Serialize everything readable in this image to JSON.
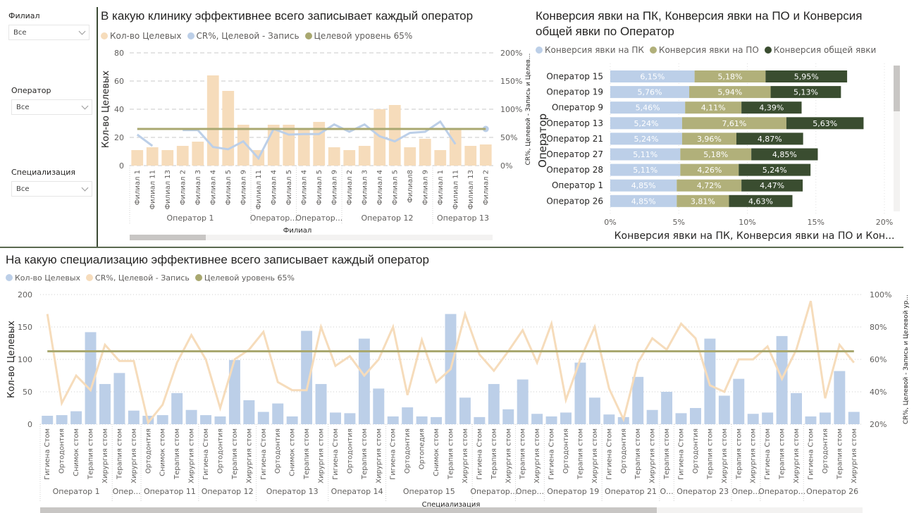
{
  "slicers": [
    {
      "label": "Филиал",
      "value": "Все"
    },
    {
      "label": "Оператор",
      "value": "Все"
    },
    {
      "label": "Специализация",
      "value": "Все"
    }
  ],
  "colors": {
    "peach": "#f6dcbb",
    "lightblue": "#bccfe8",
    "olive": "#b1b07a",
    "dark_green": "#3a4d30",
    "target_line": "#a9a870"
  },
  "chart_data": [
    {
      "type": "bar",
      "id": "clinic-chart",
      "title": "В какую клинику эффективнее всего записывает каждый оператор",
      "legend": [
        "Кол-во Целевых",
        "CR%, Целевой - Запись",
        "Целевой уровень 65%"
      ],
      "xlabel": "Филиал",
      "ylabel": "Кол-во Целевых",
      "y2label": "CR%, Целевой - Запись и Целев...",
      "ylim": [
        0,
        80
      ],
      "yticks": [
        "0",
        "20",
        "40",
        "60",
        "80"
      ],
      "y2lim": [
        0,
        200
      ],
      "y2ticks": [
        "0%",
        "50%",
        "100%",
        "150%",
        "200%"
      ],
      "groups": [
        {
          "name": "Оператор 1",
          "count": 8
        },
        {
          "name": "Оператор...",
          "count": 3
        },
        {
          "name": "Оператор...",
          "count": 3
        },
        {
          "name": "Оператор 12",
          "count": 6
        },
        {
          "name": "Оператор 13",
          "count": 4
        }
      ],
      "categories": [
        "Филиал 1",
        "Филиал 11",
        "Филиал 13",
        "Филиал 2",
        "Филиал 3",
        "Филиал 4",
        "Филиал 5",
        "Филиал 9",
        "Филиал 11",
        "Филиал 4",
        "Филиал 5",
        "Филиал 4",
        "Филиал 5",
        "Филиал 9",
        "Филиал 2",
        "Филиал 3",
        "Филиал 4",
        "Филиал 5",
        "Филиал8",
        "Филиал 9",
        "Филиал 1",
        "Филиал 11",
        "Филиал 13",
        "Филиал 2"
      ],
      "series": [
        {
          "name": "Кол-во Целевых",
          "type": "bar",
          "values": [
            11,
            13,
            11,
            14,
            17,
            64,
            53,
            29,
            11,
            29,
            29,
            26,
            31,
            13,
            11,
            14,
            40,
            43,
            13,
            19,
            11,
            26,
            14,
            15
          ]
        },
        {
          "name": "CR%, Целевой - Запись",
          "type": "line",
          "values": [
            55,
            35,
            null,
            63,
            63,
            33,
            29,
            43,
            13,
            65,
            55,
            56,
            56,
            73,
            60,
            73,
            52,
            43,
            58,
            60,
            78,
            38,
            null,
            65
          ]
        },
        {
          "name": "Целевой уровень 65%",
          "type": "line",
          "values": [
            65,
            65,
            65,
            65,
            65,
            65,
            65,
            65,
            65,
            65,
            65,
            65,
            65,
            65,
            65,
            65,
            65,
            65,
            65,
            65,
            65,
            65,
            65,
            65
          ]
        }
      ]
    },
    {
      "type": "bar",
      "id": "conversion-chart",
      "orientation": "horizontal-stacked",
      "title": "Конверсия явки на ПК, Конверсия явки на ПО и Конверсия общей явки по Оператор",
      "legend": [
        "Конверсия явки на ПК",
        "Конверсия явки на ПО",
        "Конверсия общей явки"
      ],
      "xlabel": "Конверсия явки на ПК, Конверсия явки на ПО и Кон...",
      "ylabel": "Оператор",
      "xlim": [
        0,
        20
      ],
      "xticks": [
        "0%",
        "5%",
        "10%",
        "15%",
        "20%"
      ],
      "categories": [
        "Оператор 15",
        "Оператор 19",
        "Оператор 9",
        "Оператор 13",
        "Оператор 21",
        "Оператор 27",
        "Оператор 28",
        "Оператор 1",
        "Оператор 26"
      ],
      "series": [
        {
          "name": "Конверсия явки на ПК",
          "values": [
            6.15,
            5.76,
            5.46,
            5.24,
            5.24,
            5.11,
            5.11,
            4.85,
            4.85
          ],
          "labels": [
            "6,15%",
            "5,76%",
            "5,46%",
            "5,24%",
            "5,24%",
            "5,11%",
            "5,11%",
            "4,85%",
            "4,85%"
          ]
        },
        {
          "name": "Конверсия явки на ПО",
          "values": [
            5.18,
            5.94,
            4.11,
            7.61,
            3.96,
            5.18,
            4.26,
            4.72,
            3.81
          ],
          "labels": [
            "5,18%",
            "5,94%",
            "4,11%",
            "7,61%",
            "3,96%",
            "5,18%",
            "4,26%",
            "4,72%",
            "3,81%"
          ]
        },
        {
          "name": "Конверсия общей явки",
          "values": [
            5.95,
            5.13,
            4.39,
            5.63,
            4.87,
            4.85,
            5.24,
            4.47,
            4.63
          ],
          "labels": [
            "5,95%",
            "5,13%",
            "4,39%",
            "5,63%",
            "4,87%",
            "4,85%",
            "5,24%",
            "4,47%",
            "4,63%"
          ]
        }
      ]
    },
    {
      "type": "bar",
      "id": "specialization-chart",
      "title": "На какую специализацию эффективнее всего записывает каждый оператор",
      "legend": [
        "Кол-во Целевых",
        "CR%, Целевой - Запись",
        "Целевой уровень 65%"
      ],
      "xlabel": "Специализация",
      "ylabel": "Кол-во Целевых",
      "y2label": "CR%, Целевой - Запись и Целевой ур...",
      "ylim": [
        0,
        200
      ],
      "yticks": [
        "0",
        "50",
        "100",
        "150",
        "200"
      ],
      "y2lim": [
        20,
        100
      ],
      "y2ticks": [
        "20%",
        "40%",
        "60%",
        "80%",
        "100%"
      ],
      "groups": [
        {
          "name": "Оператор 1",
          "count": 5
        },
        {
          "name": "Опер...",
          "count": 2
        },
        {
          "name": "Оператор 11",
          "count": 4
        },
        {
          "name": "Оператор 12",
          "count": 4
        },
        {
          "name": "Оператор 13",
          "count": 5
        },
        {
          "name": "Оператор 14",
          "count": 4
        },
        {
          "name": "Оператор 15",
          "count": 6
        },
        {
          "name": "Оператор...",
          "count": 3
        },
        {
          "name": "Опер...",
          "count": 2
        },
        {
          "name": "Оператор 19",
          "count": 4
        },
        {
          "name": "Оператор 21",
          "count": 4
        },
        {
          "name": "О...",
          "count": 1
        },
        {
          "name": "Оператор 23",
          "count": 4
        },
        {
          "name": "Опер...",
          "count": 2
        },
        {
          "name": "Оператор...",
          "count": 3
        },
        {
          "name": "Оператор 26",
          "count": 4
        }
      ],
      "categories": [
        "Гигиена Стом",
        "Ортодонтия",
        "Снимок стом",
        "Терапия стом",
        "Хирургия стом",
        "Терапия стом",
        "Хирургия стом",
        "Ортодонтия",
        "Снимок стом",
        "Терапия стом",
        "Хирургия стом",
        "Гигиена Стом",
        "Ортодонтия",
        "Терапия стом",
        "Хирургия стом",
        "Гигиена Стом",
        "Ортодонтия",
        "Снимок стом",
        "Терапия стом",
        "Хирургия стом",
        "Гигиена Стом",
        "Ортодонтия",
        "Терапия стом",
        "Хирургия стом",
        "Гигиена Стом",
        "Ортодонтия",
        "Ортопедия",
        "Снимок стом",
        "Терапия стом",
        "Хирургия стом",
        "Гигиена Стом",
        "Терапия стом",
        "Хирургия стом",
        "Терапия стом",
        "Хирургия стом",
        "Гигиена Стом",
        "Ортодонтия",
        "Терапия стом",
        "Хирургия стом",
        "Гигиена Стом",
        "Ортодонтия",
        "Терапия стом",
        "Хирургия стом",
        "Терапия стом",
        "Гигиена Стом",
        "Ортодонтия",
        "Терапия стом",
        "Хирургия стом",
        "Терапия стом",
        "Хирургия стом",
        "Гигиена Стом",
        "Терапия стом",
        "Хирургия стом",
        "Гигиена Стом",
        "Ортодонтия",
        "Терапия стом",
        "Хирургия стом"
      ],
      "series": [
        {
          "name": "Кол-во Целевых",
          "type": "bar",
          "values": [
            13,
            14,
            20,
            142,
            62,
            79,
            21,
            13,
            14,
            48,
            22,
            14,
            12,
            99,
            37,
            19,
            32,
            12,
            144,
            62,
            18,
            17,
            132,
            55,
            12,
            26,
            12,
            11,
            170,
            41,
            11,
            62,
            23,
            69,
            16,
            12,
            18,
            95,
            41,
            15,
            11,
            73,
            22,
            50,
            17,
            25,
            132,
            44,
            70,
            16,
            18,
            136,
            48,
            12,
            18,
            82,
            19
          ]
        },
        {
          "name": "CR%, Целевой - Запись",
          "type": "line",
          "values": [
            88,
            33,
            50,
            41,
            69,
            59,
            59,
            21,
            32,
            58,
            75,
            60,
            30,
            60,
            66,
            77,
            46,
            41,
            41,
            80,
            56,
            62,
            50,
            60,
            80,
            38,
            72,
            46,
            54,
            88,
            63,
            53,
            65,
            78,
            58,
            82,
            35,
            60,
            80,
            42,
            23,
            58,
            73,
            66,
            82,
            73,
            44,
            40,
            60,
            60,
            68,
            48,
            66,
            96,
            36,
            69,
            58
          ]
        },
        {
          "name": "Целевой уровень 65%",
          "type": "line",
          "value": 65
        }
      ]
    }
  ]
}
